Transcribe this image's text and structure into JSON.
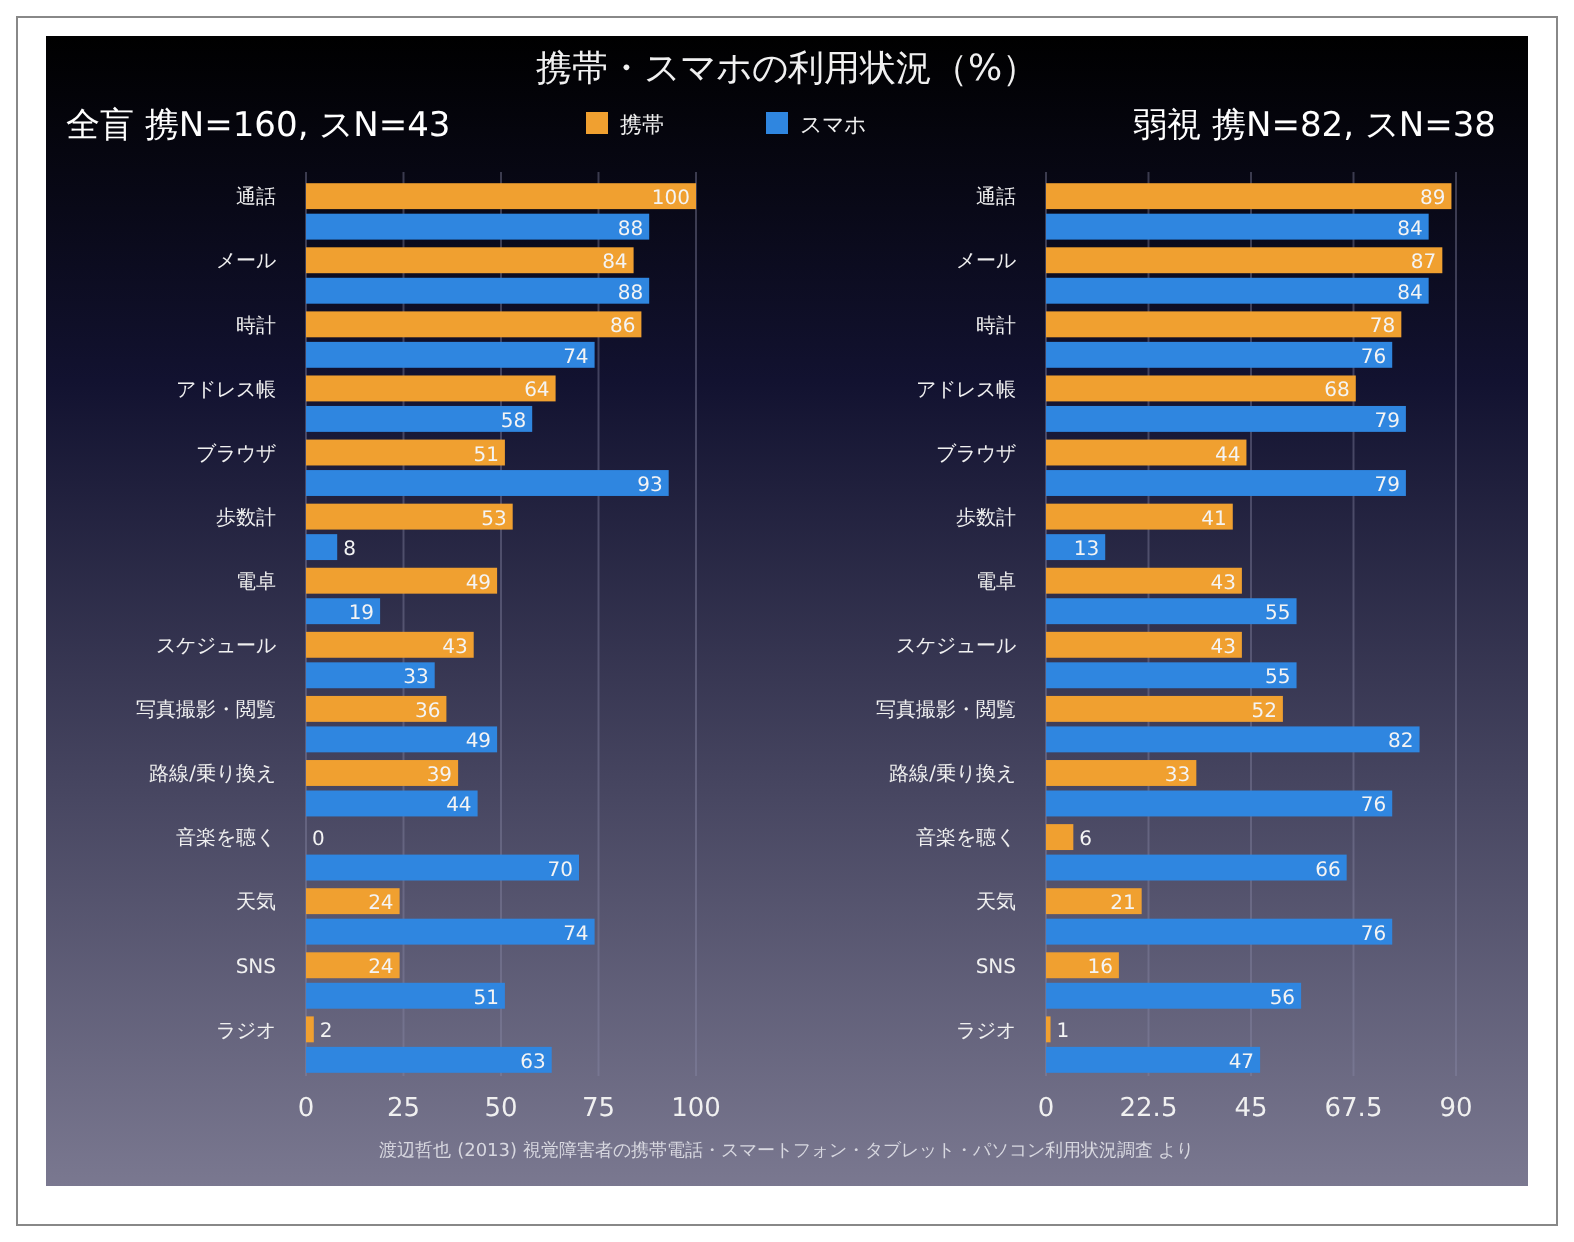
{
  "chart_data": [
    {
      "type": "bar",
      "orientation": "horizontal",
      "title": "携帯・スマホの利用状況（%）",
      "subtitle": "全盲 携N=160, スN=43",
      "categories": [
        "通話",
        "メール",
        "時計",
        "アドレス帳",
        "ブラウザ",
        "歩数計",
        "電卓",
        "スケジュール",
        "写真撮影・閲覧",
        "路線/乗り換え",
        "音楽を聴く",
        "天気",
        "SNS",
        "ラジオ"
      ],
      "series": [
        {
          "name": "携帯",
          "color": "#f0a030",
          "values": [
            100,
            84,
            86,
            64,
            51,
            53,
            49,
            43,
            36,
            39,
            0,
            24,
            24,
            2
          ]
        },
        {
          "name": "スマホ",
          "color": "#2f86e0",
          "values": [
            88,
            88,
            74,
            58,
            93,
            8,
            19,
            33,
            49,
            44,
            70,
            74,
            51,
            63
          ]
        }
      ],
      "xlim": [
        0,
        100
      ],
      "xticks": [
        0,
        25,
        50,
        75,
        100
      ],
      "grid": "x",
      "legend": "top",
      "data_labels": true
    },
    {
      "type": "bar",
      "orientation": "horizontal",
      "subtitle": "弱視 携N=82, スN=38",
      "categories": [
        "通話",
        "メール",
        "時計",
        "アドレス帳",
        "ブラウザ",
        "歩数計",
        "電卓",
        "スケジュール",
        "写真撮影・閲覧",
        "路線/乗り換え",
        "音楽を聴く",
        "天気",
        "SNS",
        "ラジオ"
      ],
      "series": [
        {
          "color": "#f0a030",
          "values": [
            89,
            87,
            78,
            68,
            44,
            41,
            43,
            43,
            52,
            33,
            6,
            21,
            16,
            1
          ]
        },
        {
          "color": "#2f86e0",
          "values": [
            84,
            84,
            76,
            79,
            79,
            13,
            55,
            55,
            82,
            76,
            66,
            76,
            56,
            47
          ]
        }
      ],
      "xlim": [
        0,
        90
      ],
      "xticks": [
        0,
        22.5,
        45,
        67.5,
        90
      ],
      "grid": "x",
      "data_labels": true,
      "annotations": [
        "渡辺哲也 (2013) 視覚障害者の携帯電話・スマートフォン・タブレット・パソコン利用状況調査 より"
      ]
    }
  ]
}
